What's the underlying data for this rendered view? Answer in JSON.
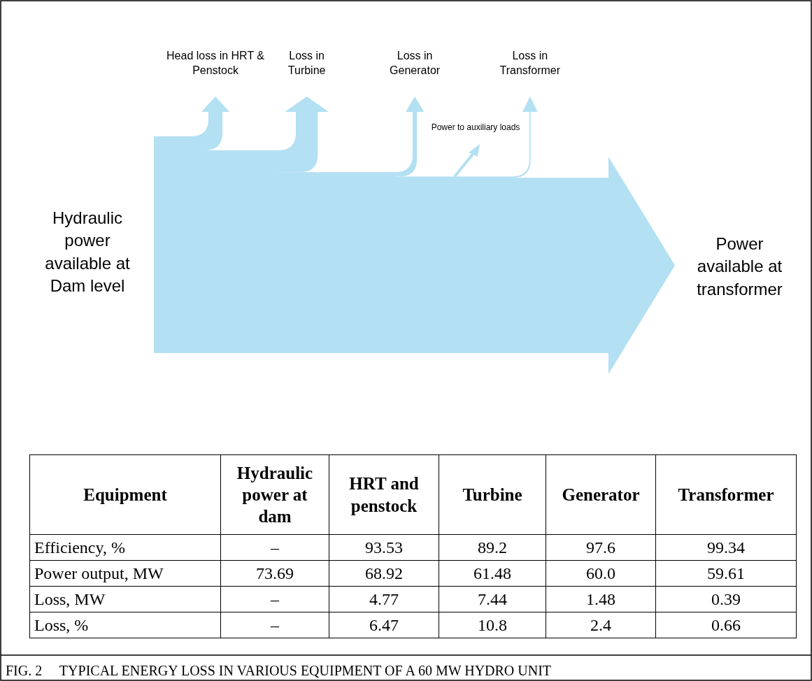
{
  "chart_data": {
    "type": "other",
    "title": "FIG. 2     TYPICAL ENERGY LOSS IN VARIOUS EQUIPMENT OF A 60 MW HYDRO UNIT",
    "xlabel": "Equipment",
    "categories": [
      "Hydraulic power at dam",
      "HRT and penstock",
      "Turbine",
      "Generator",
      "Transformer"
    ],
    "series": [
      {
        "name": "Efficiency, %",
        "values": [
          null,
          93.53,
          89.2,
          97.6,
          99.34
        ],
        "value_labels": [
          "–",
          "93.53",
          "89.2",
          "97.6",
          "99.34"
        ]
      },
      {
        "name": "Power output, MW",
        "values": [
          73.69,
          68.92,
          61.48,
          60.0,
          59.61
        ],
        "value_labels": [
          "73.69",
          "68.92",
          "61.48",
          "60.0",
          "59.61"
        ]
      },
      {
        "name": "Loss, MW",
        "values": [
          null,
          4.77,
          7.44,
          1.48,
          0.39
        ],
        "value_labels": [
          "–",
          "4.77",
          "7.44",
          "1.48",
          "0.39"
        ]
      },
      {
        "name": "Loss, %",
        "values": [
          null,
          6.47,
          10.8,
          2.4,
          0.66
        ],
        "value_labels": [
          "–",
          "6.47",
          "10.8",
          "2.4",
          "0.66"
        ]
      }
    ],
    "annotations": [
      "Hydraulic power available at Dam level",
      "Power available at transformer",
      "Head loss in HRT & Penstock",
      "Loss in Turbine",
      "Loss in Generator",
      "Loss in Transformer",
      "Power to auxiliary loads"
    ]
  }
}
